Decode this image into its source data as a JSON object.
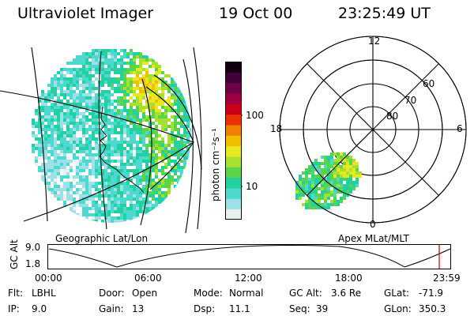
{
  "header": {
    "title": "Ultraviolet Imager",
    "date": "19 Oct 00",
    "time": "23:25:49 UT"
  },
  "geo_panel": {
    "label": "Geographic Lat/Lon"
  },
  "polar_panel": {
    "label": "Apex MLat/MLT",
    "mlt_labels": {
      "top": "12",
      "left": "18",
      "right": "6",
      "bottom": "0"
    },
    "lat_labels": [
      "60",
      "70",
      "80"
    ]
  },
  "colorbar": {
    "unit_label": "photon cm⁻²s⁻¹",
    "ticks": [
      "100",
      "10"
    ],
    "colors": [
      "#e8f0f0",
      "#9ee0e8",
      "#4dd8d0",
      "#22d0a0",
      "#5ad44a",
      "#a8e030",
      "#e8e820",
      "#f0c000",
      "#f08000",
      "#e83000",
      "#c80018",
      "#a00040",
      "#70004a",
      "#40003a",
      "#100010"
    ]
  },
  "altitude_plot": {
    "ylabel": "GC Alt",
    "yticks": [
      "9.0",
      "1.8"
    ],
    "xticks": [
      "00:00",
      "06:00",
      "12:00",
      "18:00",
      "23:59"
    ],
    "marker_color": "#c00000"
  },
  "info": {
    "filter_label": "Flt:",
    "filter_value": "LBHL",
    "door_label": "Door:",
    "door_value": "Open",
    "mode_label": "Mode:",
    "mode_value": "Normal",
    "gcalt_label": "GC Alt:",
    "gcalt_value": "3.6 Re",
    "glat_label": "GLat:",
    "glat_value": "-71.9",
    "ip_label": "IP:",
    "ip_value": "9.0",
    "gain_label": "Gain:",
    "gain_value": "13",
    "dsp_label": "Dsp:",
    "dsp_value": "11.1",
    "seq_label": "Seq:",
    "seq_value": "39",
    "glon_label": "GLon:",
    "glon_value": "350.3"
  }
}
